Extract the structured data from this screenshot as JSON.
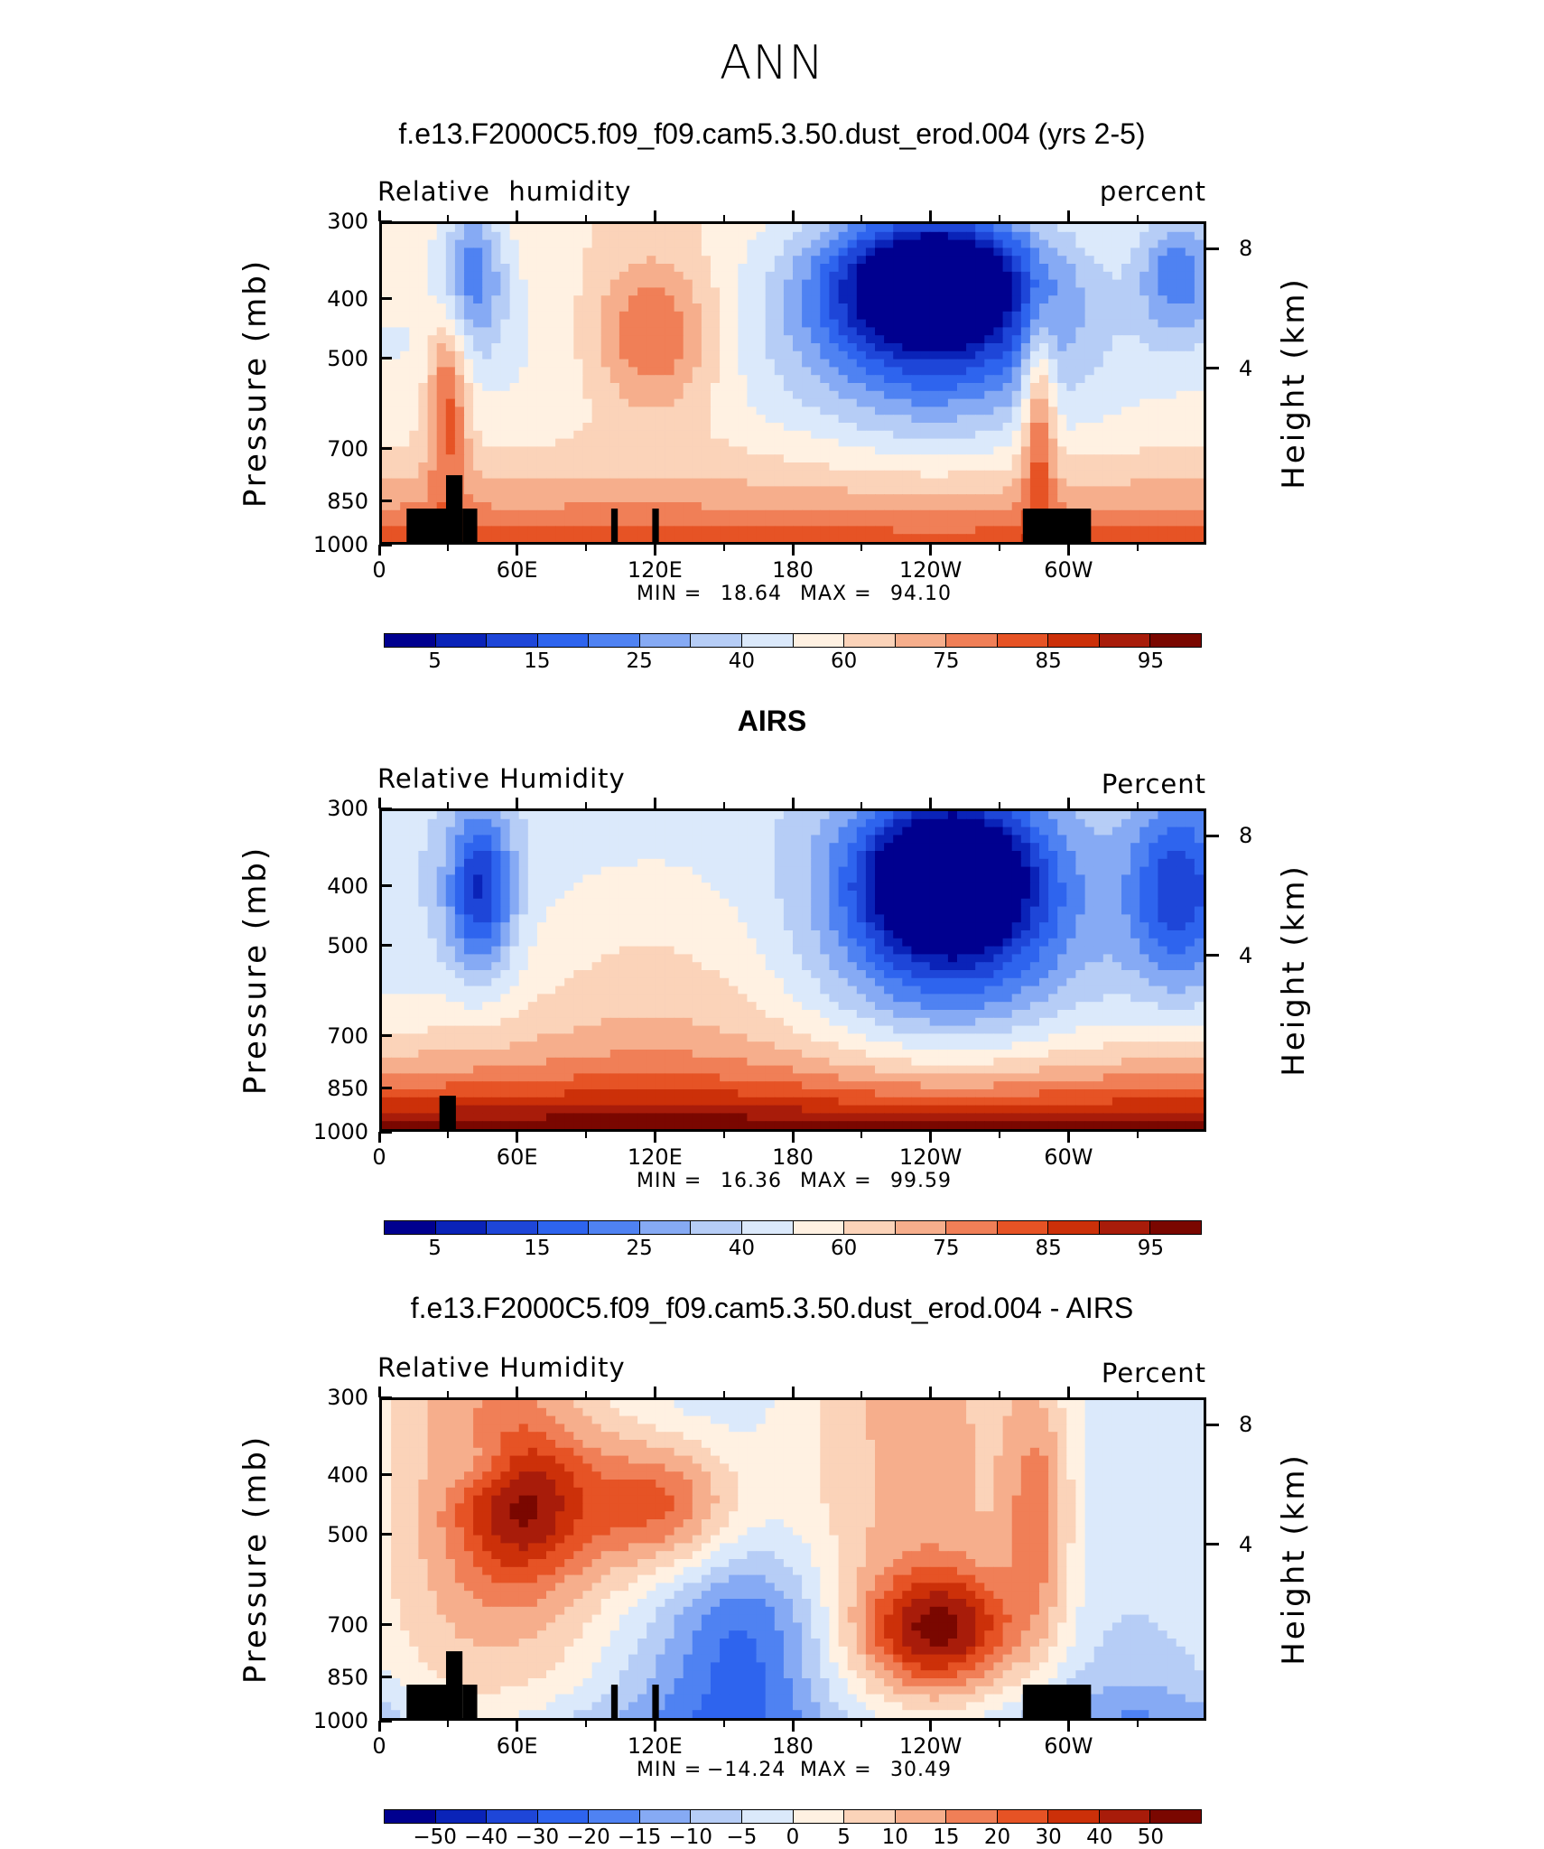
{
  "page_title": "ANN",
  "colors": {
    "rh": [
      "#00008f",
      "#0a23b8",
      "#1e46d8",
      "#2e64ee",
      "#4f82f2",
      "#86aaf4",
      "#b6cdf6",
      "#dbe9fb",
      "#fff1e2",
      "#fbd3b9",
      "#f6ae8c",
      "#f07f57",
      "#e65325",
      "#cc3009",
      "#a81c0a",
      "#7a0700"
    ],
    "diff": [
      "#00008f",
      "#0a23b8",
      "#1e46d8",
      "#2e64ee",
      "#4f82f2",
      "#86aaf4",
      "#b6cdf6",
      "#dbe9fb",
      "#fff1e2",
      "#fbd3b9",
      "#f6ae8c",
      "#f07f57",
      "#e65325",
      "#cc3009",
      "#a81c0a",
      "#7a0700"
    ],
    "land": "#000000"
  },
  "chart_data": [
    {
      "type": "heatmap",
      "title": "f.e13.F2000C5.f09_f09.cam5.3.50.dust_erod.004 (yrs 2-5)",
      "variable_label": "Relative  humidity",
      "units_label": "percent",
      "ylabel": "Pressure (mb)",
      "y2label": "Height (km)",
      "xtick_labels": [
        "0",
        "60E",
        "120E",
        "180",
        "120W",
        "60W"
      ],
      "ytick_labels": [
        "300",
        "400",
        "500",
        "700",
        "850",
        "1000"
      ],
      "y2tick_labels": [
        "8",
        "4"
      ],
      "min_label": "MIN =",
      "min_value": "18.64",
      "max_label": "MAX =",
      "max_value": "94.10",
      "colorbar_labels": [
        "5",
        "15",
        "25",
        "40",
        "60",
        "75",
        "85",
        "95"
      ],
      "grid": false
    },
    {
      "type": "heatmap",
      "title": "AIRS",
      "variable_label": "Relative Humidity",
      "units_label": "Percent",
      "ylabel": "Pressure (mb)",
      "y2label": "Height (km)",
      "xtick_labels": [
        "0",
        "60E",
        "120E",
        "180",
        "120W",
        "60W"
      ],
      "ytick_labels": [
        "300",
        "400",
        "500",
        "700",
        "850",
        "1000"
      ],
      "y2tick_labels": [
        "8",
        "4"
      ],
      "min_label": "MIN =",
      "min_value": "16.36",
      "max_label": "MAX =",
      "max_value": "99.59",
      "colorbar_labels": [
        "5",
        "15",
        "25",
        "40",
        "60",
        "75",
        "85",
        "95"
      ],
      "grid": false
    },
    {
      "type": "heatmap",
      "title": "f.e13.F2000C5.f09_f09.cam5.3.50.dust_erod.004 - AIRS",
      "variable_label": "Relative Humidity",
      "units_label": "Percent",
      "ylabel": "Pressure (mb)",
      "y2label": "Height (km)",
      "xtick_labels": [
        "0",
        "60E",
        "120E",
        "180",
        "120W",
        "60W"
      ],
      "ytick_labels": [
        "300",
        "400",
        "500",
        "700",
        "850",
        "1000"
      ],
      "y2tick_labels": [
        "8",
        "4"
      ],
      "min_label": "MIN =",
      "min_value": "−14.24",
      "max_label": "MAX =",
      "max_value": "30.49",
      "colorbar_labels": [
        "−50",
        "−40",
        "−30",
        "−20",
        "−15",
        "−10",
        "−5",
        "0",
        "5",
        "10",
        "15",
        "20",
        "30",
        "40",
        "50"
      ],
      "grid": false
    }
  ]
}
